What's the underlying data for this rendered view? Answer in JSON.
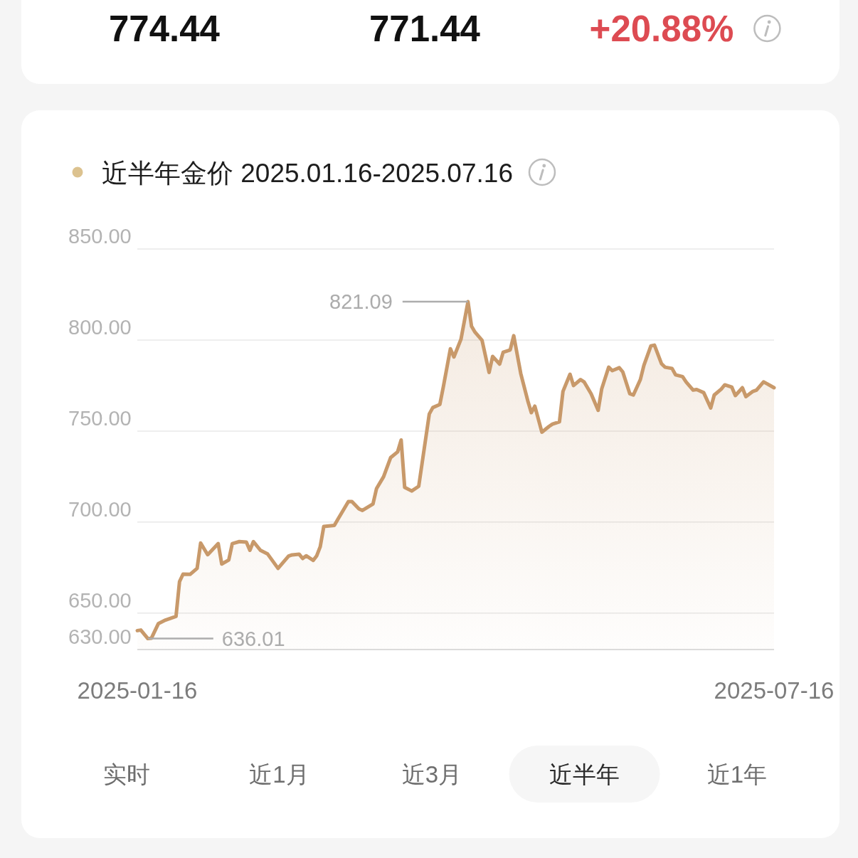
{
  "chart_data": [
    {
      "type": "other",
      "annotations": [
        "774.44",
        "771.44",
        "+20.88%"
      ],
      "colors": [
        "#111111",
        "#111111",
        "#dd4b52"
      ]
    },
    {
      "type": "area",
      "title": "近半年金价 2025.01.16-2025.07.16",
      "x": [
        "2025-01-16",
        "2025-01-17",
        "2025-01-19",
        "2025-01-20",
        "2025-01-22",
        "2025-01-24",
        "2025-01-27",
        "2025-01-28",
        "2025-01-29",
        "2025-01-31",
        "2025-02-02",
        "2025-02-03",
        "2025-02-05",
        "2025-02-08",
        "2025-02-09",
        "2025-02-11",
        "2025-02-12",
        "2025-02-14",
        "2025-02-16",
        "2025-02-17",
        "2025-02-18",
        "2025-02-20",
        "2025-02-22",
        "2025-02-25",
        "2025-02-28",
        "2025-03-01",
        "2025-03-03",
        "2025-03-04",
        "2025-03-05",
        "2025-03-07",
        "2025-03-08",
        "2025-03-09",
        "2025-03-10",
        "2025-03-13",
        "2025-03-14",
        "2025-03-17",
        "2025-03-18",
        "2025-03-20",
        "2025-03-21",
        "2025-03-24",
        "2025-03-25",
        "2025-03-27",
        "2025-03-29",
        "2025-03-31",
        "2025-04-01",
        "2025-04-02",
        "2025-04-04",
        "2025-04-06",
        "2025-04-09",
        "2025-04-10",
        "2025-04-12",
        "2025-04-13",
        "2025-04-15",
        "2025-04-16",
        "2025-04-18",
        "2025-04-20",
        "2025-04-21",
        "2025-04-22",
        "2025-04-24",
        "2025-04-26",
        "2025-04-27",
        "2025-04-29",
        "2025-04-30",
        "2025-05-02",
        "2025-05-03",
        "2025-05-05",
        "2025-05-07",
        "2025-05-08",
        "2025-05-09",
        "2025-05-11",
        "2025-05-13",
        "2025-05-14",
        "2025-05-16",
        "2025-05-17",
        "2025-05-19",
        "2025-05-20",
        "2025-05-22",
        "2025-05-23",
        "2025-05-25",
        "2025-05-27",
        "2025-05-28",
        "2025-05-30",
        "2025-05-31",
        "2025-06-02",
        "2025-06-03",
        "2025-06-05",
        "2025-06-06",
        "2025-06-08",
        "2025-06-09",
        "2025-06-11",
        "2025-06-12",
        "2025-06-14",
        "2025-06-15",
        "2025-06-17",
        "2025-06-18",
        "2025-06-20",
        "2025-06-21",
        "2025-06-23",
        "2025-06-24",
        "2025-06-26",
        "2025-06-28",
        "2025-06-29",
        "2025-07-01",
        "2025-07-02",
        "2025-07-04",
        "2025-07-05",
        "2025-07-07",
        "2025-07-08",
        "2025-07-10",
        "2025-07-11",
        "2025-07-13",
        "2025-07-14",
        "2025-07-16"
      ],
      "series": [
        {
          "color": "#c8996a",
          "values": [
            640.4,
            640.7,
            636.01,
            636.2,
            644.3,
            646.2,
            648.2,
            667.3,
            671.4,
            671.3,
            674.6,
            688.5,
            682.1,
            688.2,
            677.0,
            679.2,
            688.2,
            689.3,
            689.0,
            684.5,
            689.3,
            684.5,
            682.6,
            674.6,
            681.3,
            682.0,
            682.4,
            680.0,
            681.5,
            679.0,
            681.5,
            686.5,
            697.6,
            698.2,
            701.5,
            711.3,
            711.3,
            707.3,
            706.4,
            710.0,
            718.4,
            724.9,
            735.4,
            738.6,
            745.1,
            719.1,
            717.1,
            719.7,
            759.4,
            762.9,
            764.6,
            774.4,
            795.2,
            790.7,
            800.4,
            821.09,
            807.6,
            804.3,
            799.8,
            782.2,
            791.0,
            786.8,
            793.3,
            794.6,
            802.4,
            781.6,
            766.6,
            760.1,
            763.7,
            749.4,
            752.5,
            753.8,
            755.1,
            771.8,
            781.2,
            775.0,
            778.3,
            777.0,
            770.5,
            761.4,
            773.1,
            785.1,
            783.2,
            784.8,
            782.5,
            770.5,
            769.8,
            778.3,
            786.1,
            796.8,
            797.2,
            787.0,
            785.1,
            784.4,
            780.9,
            779.9,
            777.0,
            772.5,
            772.8,
            771.1,
            762.7,
            769.8,
            773.1,
            775.4,
            774.1,
            769.5,
            773.8,
            768.9,
            771.8,
            772.5,
            777.0,
            776.0,
            773.8
          ]
        }
      ],
      "xlim": [
        "2025-01-16",
        "2025-07-16"
      ],
      "xticks": [
        "2025-01-16",
        "2025-07-16"
      ],
      "ylim": [
        630,
        850
      ],
      "yticks": [
        {
          "value": 630,
          "label": "630.00"
        },
        {
          "value": 650,
          "label": "650.00"
        },
        {
          "value": 700,
          "label": "700.00"
        },
        {
          "value": 750,
          "label": "750.00"
        },
        {
          "value": 800,
          "label": "800.00"
        },
        {
          "value": 850,
          "label": "850.00"
        }
      ],
      "grid": "y",
      "annotations": [
        "821.09",
        "636.01"
      ]
    },
    {
      "type": "other",
      "annotations": [
        "实时",
        "近1月",
        "近3月",
        "近半年",
        "近1年"
      ]
    }
  ]
}
